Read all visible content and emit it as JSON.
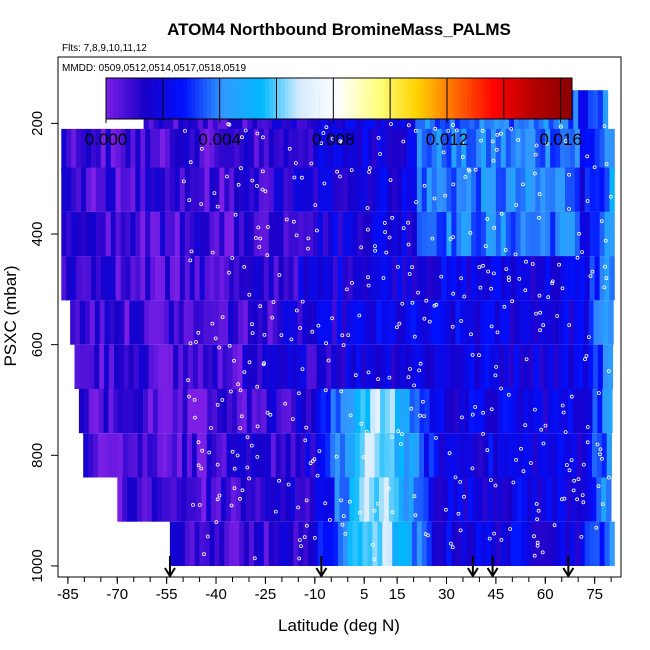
{
  "chart_data": {
    "type": "heatmap",
    "title": "ATOM4 Northbound BromineMass_PALMS",
    "flights_note": "Flts: 7,8,9,10,11,12",
    "dates_note": "MMDD: 0509,0512,0514,0517,0518,0519",
    "xlabel": "Latitude (deg N)",
    "ylabel": "PSXC (mbar)",
    "xlim": [
      -88,
      83
    ],
    "ylim": [
      1020,
      80
    ],
    "x_ticks": [
      -85,
      -70,
      -55,
      -40,
      -25,
      -10,
      5,
      15,
      30,
      45,
      60,
      75
    ],
    "x_tick_labels": [
      "-85",
      "-70",
      "-55",
      "-40",
      "-25",
      "-10",
      "5",
      "15",
      "30",
      "45",
      "60",
      "75"
    ],
    "x_minor_step": 5,
    "y_ticks": [
      200,
      400,
      600,
      800,
      1000
    ],
    "y_tick_labels": [
      "200",
      "400",
      "600",
      "800",
      "1000"
    ],
    "colorbar": {
      "min": 0.0,
      "max": 0.0164,
      "ticks": [
        0.0,
        0.004,
        0.008,
        0.012,
        0.016
      ],
      "tick_labels": [
        "0.000",
        "0.004",
        "0.008",
        "0.012",
        "0.016"
      ],
      "divisions": [
        0.002,
        0.004,
        0.006,
        0.008,
        0.01,
        0.012,
        0.014,
        0.016
      ],
      "colors": [
        "#7b1fe6",
        "#1800c8",
        "#0010ff",
        "#3399ff",
        "#00b8ff",
        "#d9ecff",
        "#ffffff",
        "#ffff80",
        "#ffd400",
        "#ff6a00",
        "#ff0000",
        "#b40000",
        "#8c0000"
      ]
    },
    "pressure_levels": [
      180,
      250,
      320,
      400,
      480,
      560,
      640,
      720,
      800,
      880,
      960
    ],
    "arrow_latitudes": [
      -54,
      -8,
      38,
      44,
      67
    ],
    "grid": false,
    "legend": "colorbar at top of plot area"
  }
}
